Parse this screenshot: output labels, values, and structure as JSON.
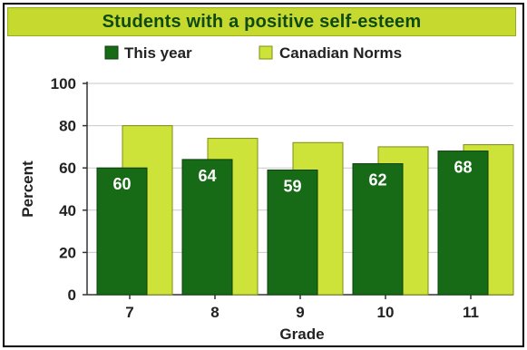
{
  "colors": {
    "this_year": "#176b17",
    "this_year_edge": "#0c3f0c",
    "norms": "#cde33a",
    "norms_edge": "#7e8c16",
    "title_bg": "#c6d92f",
    "title_text": "#0f4a12",
    "grid": "#c9c9c9"
  },
  "chart_data": {
    "type": "bar",
    "title": "Students with a positive self-esteem",
    "xlabel": "Grade",
    "ylabel": "Percent",
    "categories": [
      "7",
      "8",
      "9",
      "10",
      "11"
    ],
    "series": [
      {
        "name": "This year",
        "values": [
          60,
          64,
          59,
          62,
          68
        ],
        "color_key": "this_year"
      },
      {
        "name": "Canadian Norms",
        "values": [
          80,
          74,
          72,
          70,
          71
        ],
        "color_key": "norms"
      }
    ],
    "data_labels": [
      "60",
      "64",
      "59",
      "62",
      "68"
    ],
    "ylim": [
      0,
      100
    ],
    "yticks": [
      0,
      20,
      40,
      60,
      80,
      100
    ],
    "grid": true,
    "legend_position": "top"
  }
}
